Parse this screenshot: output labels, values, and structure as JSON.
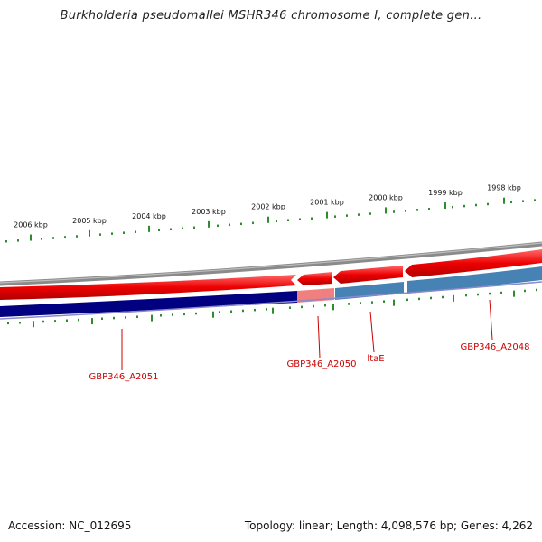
{
  "title": "Burkholderia pseudomallei MSHR346 chromosome I, complete gen...",
  "ticks": [
    {
      "label": "2006 kbp"
    },
    {
      "label": "2005 kbp"
    },
    {
      "label": "2004 kbp"
    },
    {
      "label": "2003 kbp"
    },
    {
      "label": "2002 kbp"
    },
    {
      "label": "2001 kbp"
    },
    {
      "label": "2000 kbp"
    },
    {
      "label": "1999 kbp"
    },
    {
      "label": "1998 kbp"
    }
  ],
  "genes": [
    {
      "label": "GBP346_A2051"
    },
    {
      "label": "GBP346_A2050"
    },
    {
      "label": "ltaE"
    },
    {
      "label": "GBP346_A2048"
    }
  ],
  "footer": {
    "accession": "Accession: NC_012695",
    "stats": "Topology: linear; Length: 4,098,576 bp; Genes: 4,262"
  },
  "colors": {
    "backbone": "#7f7f7f",
    "gene_forward": "#ee0000",
    "cds_dark": "#000080",
    "cds_light": "#4682b4",
    "cds_highlight": "#f08080",
    "tick": "#2e8b2e",
    "label": "#cc0000"
  }
}
